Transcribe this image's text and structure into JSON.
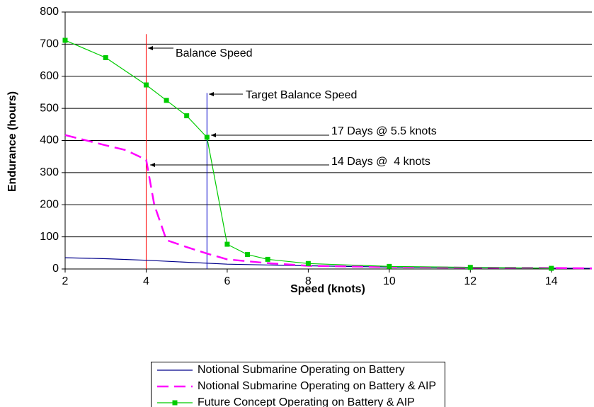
{
  "chart_data": {
    "type": "line",
    "x_label": "Speed (knots)",
    "y_label": "Endurance (hours)",
    "xlim": [
      2,
      15
    ],
    "ylim": [
      0,
      800
    ],
    "xticks": [
      2,
      4,
      6,
      8,
      10,
      12,
      14
    ],
    "yticks": [
      0,
      100,
      200,
      300,
      400,
      500,
      600,
      700,
      800
    ],
    "grid": true,
    "legend": "bottom",
    "series": [
      {
        "name": "Notional Submarine Operating on Battery",
        "color": "#00008b",
        "dash": false,
        "markers": false,
        "x": [
          2,
          3,
          4,
          5,
          6,
          8,
          10,
          12,
          15
        ],
        "values": [
          35,
          32,
          27,
          21,
          15,
          10,
          6,
          4,
          2
        ]
      },
      {
        "name": "Notional Submarine Operating on Battery & AIP",
        "color": "#ff00ff",
        "dash": true,
        "markers": false,
        "x": [
          2,
          3,
          3.5,
          4,
          4.2,
          4.5,
          5,
          5.5,
          6,
          7,
          8,
          10,
          12,
          14,
          15
        ],
        "values": [
          417,
          385,
          370,
          340,
          200,
          90,
          68,
          48,
          30,
          18,
          10,
          6,
          4,
          3,
          2
        ]
      },
      {
        "name": "Future Concept Operating on Battery & AIP",
        "color": "#00cc00",
        "dash": false,
        "markers": true,
        "x": [
          2,
          3,
          4,
          4.5,
          5,
          5.5,
          6,
          6.5,
          7,
          8,
          10,
          12,
          14
        ],
        "values": [
          712,
          658,
          573,
          525,
          477,
          410,
          77,
          45,
          30,
          17,
          8,
          5,
          2
        ]
      }
    ],
    "vlines": [
      {
        "x": 4,
        "ylim": [
          0,
          731
        ],
        "color": "#ff0000"
      },
      {
        "x": 5.5,
        "ylim": [
          0,
          548
        ],
        "color": "#0000cc"
      }
    ],
    "annotations": [
      "Balance Speed",
      "Target Balance Speed",
      "17 Days @ 5.5 knots",
      "14 Days @  4 knots"
    ]
  }
}
